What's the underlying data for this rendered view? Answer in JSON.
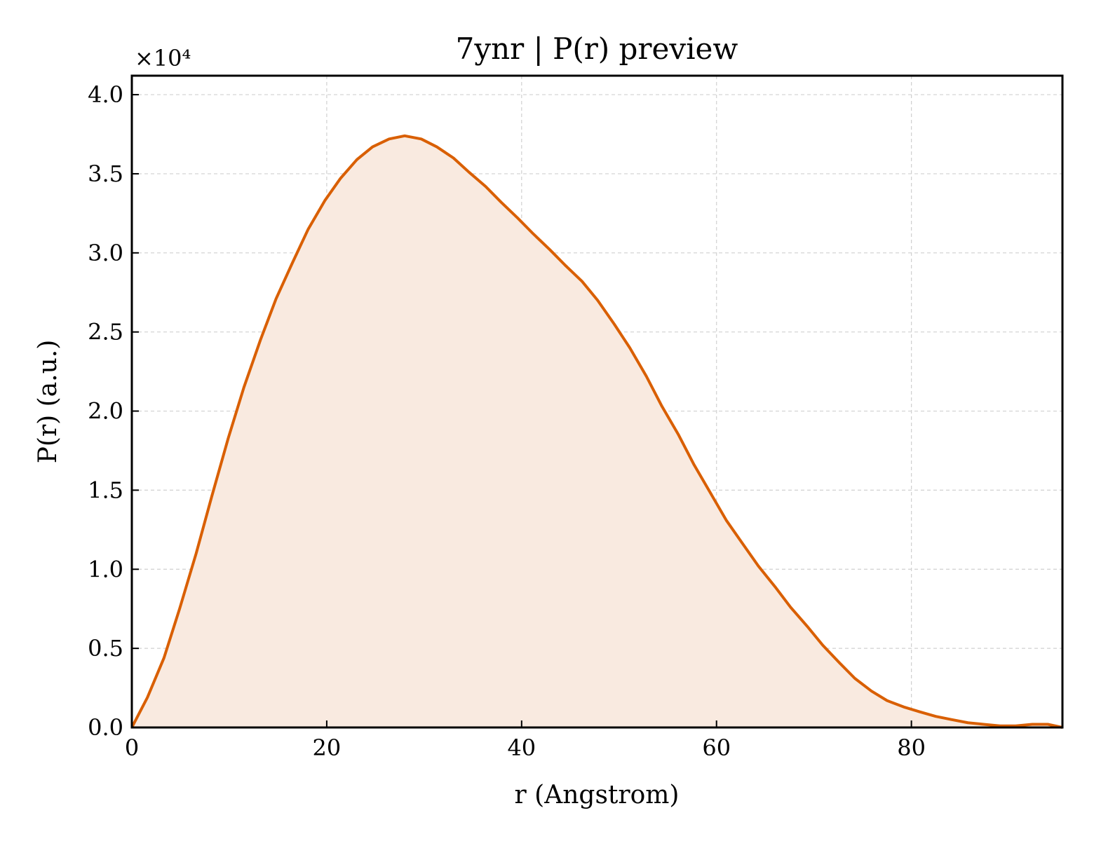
{
  "chart_data": {
    "type": "area",
    "title": "7ynr | P(r) preview",
    "xlabel": "r (Angstrom)",
    "ylabel": "P(r) (a.u.)",
    "y_offset_label": "×10⁴",
    "y_scale": 10000,
    "xlim": [
      0,
      95.5
    ],
    "ylim": [
      0,
      4.12
    ],
    "xticks": [
      0,
      20,
      40,
      60,
      80
    ],
    "xtick_labels": [
      "0",
      "20",
      "40",
      "60",
      "80"
    ],
    "yticks": [
      0.0,
      0.5,
      1.0,
      1.5,
      2.0,
      2.5,
      3.0,
      3.5,
      4.0
    ],
    "ytick_labels": [
      "0.0",
      "0.5",
      "1.0",
      "1.5",
      "2.0",
      "2.5",
      "3.0",
      "3.5",
      "4.0"
    ],
    "grid": true,
    "colors": {
      "line": "#d95f02",
      "fill": "#f9eae0"
    },
    "series": [
      {
        "x": [
          0,
          1.6,
          3.3,
          4.9,
          6.6,
          8.2,
          9.9,
          11.5,
          13.2,
          14.8,
          16.5,
          18.1,
          19.8,
          21.4,
          23.1,
          24.7,
          26.4,
          28.0,
          29.7,
          31.3,
          33.0,
          34.6,
          36.3,
          37.9,
          39.6,
          41.2,
          42.9,
          44.5,
          46.2,
          47.8,
          49.5,
          51.1,
          52.8,
          54.4,
          56.1,
          57.7,
          59.4,
          61.0,
          62.7,
          64.3,
          66.0,
          67.6,
          69.3,
          70.9,
          72.6,
          74.2,
          75.9,
          77.5,
          79.2,
          80.8,
          82.5,
          84.1,
          85.8,
          87.4,
          89.1,
          90.7,
          92.4,
          94.0,
          95.5
        ],
        "y": [
          0.0,
          0.19,
          0.44,
          0.75,
          1.1,
          1.46,
          1.83,
          2.15,
          2.45,
          2.71,
          2.94,
          3.15,
          3.33,
          3.47,
          3.59,
          3.67,
          3.72,
          3.74,
          3.72,
          3.67,
          3.6,
          3.51,
          3.42,
          3.32,
          3.22,
          3.12,
          3.02,
          2.92,
          2.82,
          2.7,
          2.55,
          2.4,
          2.22,
          2.03,
          1.85,
          1.66,
          1.48,
          1.31,
          1.16,
          1.02,
          0.89,
          0.76,
          0.64,
          0.52,
          0.41,
          0.31,
          0.23,
          0.17,
          0.13,
          0.1,
          0.07,
          0.05,
          0.03,
          0.02,
          0.01,
          0.01,
          0.02,
          0.02,
          0.0
        ]
      }
    ]
  }
}
